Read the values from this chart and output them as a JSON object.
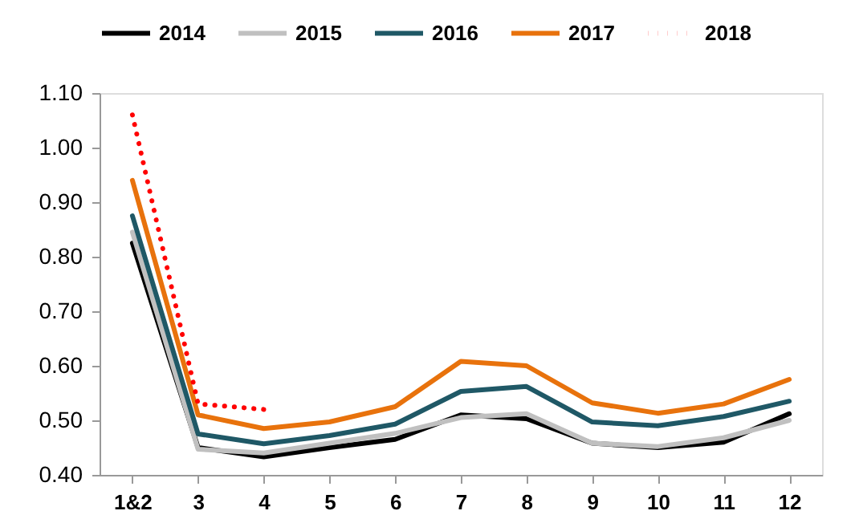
{
  "chart_data": {
    "type": "line",
    "categories": [
      "1&2",
      "3",
      "4",
      "5",
      "6",
      "7",
      "8",
      "9",
      "10",
      "11",
      "12"
    ],
    "series": [
      {
        "name": "2014",
        "color": "#000000",
        "values": [
          0.825,
          0.45,
          0.433,
          0.45,
          0.465,
          0.51,
          0.503,
          0.458,
          0.45,
          0.46,
          0.512
        ]
      },
      {
        "name": "2015",
        "color": "#c0c0c0",
        "values": [
          0.845,
          0.447,
          0.44,
          0.458,
          0.476,
          0.505,
          0.512,
          0.458,
          0.452,
          0.468,
          0.5
        ]
      },
      {
        "name": "2016",
        "color": "#1f5866",
        "values": [
          0.875,
          0.475,
          0.457,
          0.472,
          0.493,
          0.553,
          0.562,
          0.497,
          0.49,
          0.507,
          0.535
        ]
      },
      {
        "name": "2017",
        "color": "#e8720c",
        "values": [
          0.94,
          0.51,
          0.485,
          0.497,
          0.525,
          0.608,
          0.6,
          0.532,
          0.513,
          0.53,
          0.575
        ]
      },
      {
        "name": "2018",
        "color": "#ff0000",
        "line_style": "dotted",
        "values": [
          1.06,
          0.53,
          0.52,
          null,
          null,
          null,
          null,
          null,
          null,
          null,
          null
        ]
      }
    ],
    "ylim": [
      0.4,
      1.1
    ],
    "yticks": [
      {
        "value": 0.4,
        "label": "0.40"
      },
      {
        "value": 0.5,
        "label": "0.50"
      },
      {
        "value": 0.6,
        "label": "0.60"
      },
      {
        "value": 0.7,
        "label": "0.70"
      },
      {
        "value": 0.8,
        "label": "0.80"
      },
      {
        "value": 0.9,
        "label": "0.90"
      },
      {
        "value": 1.0,
        "label": "1.00"
      },
      {
        "value": 1.1,
        "label": "1.10"
      }
    ],
    "legend": "top",
    "grid": false,
    "marker": "none",
    "line_style": "solid"
  }
}
